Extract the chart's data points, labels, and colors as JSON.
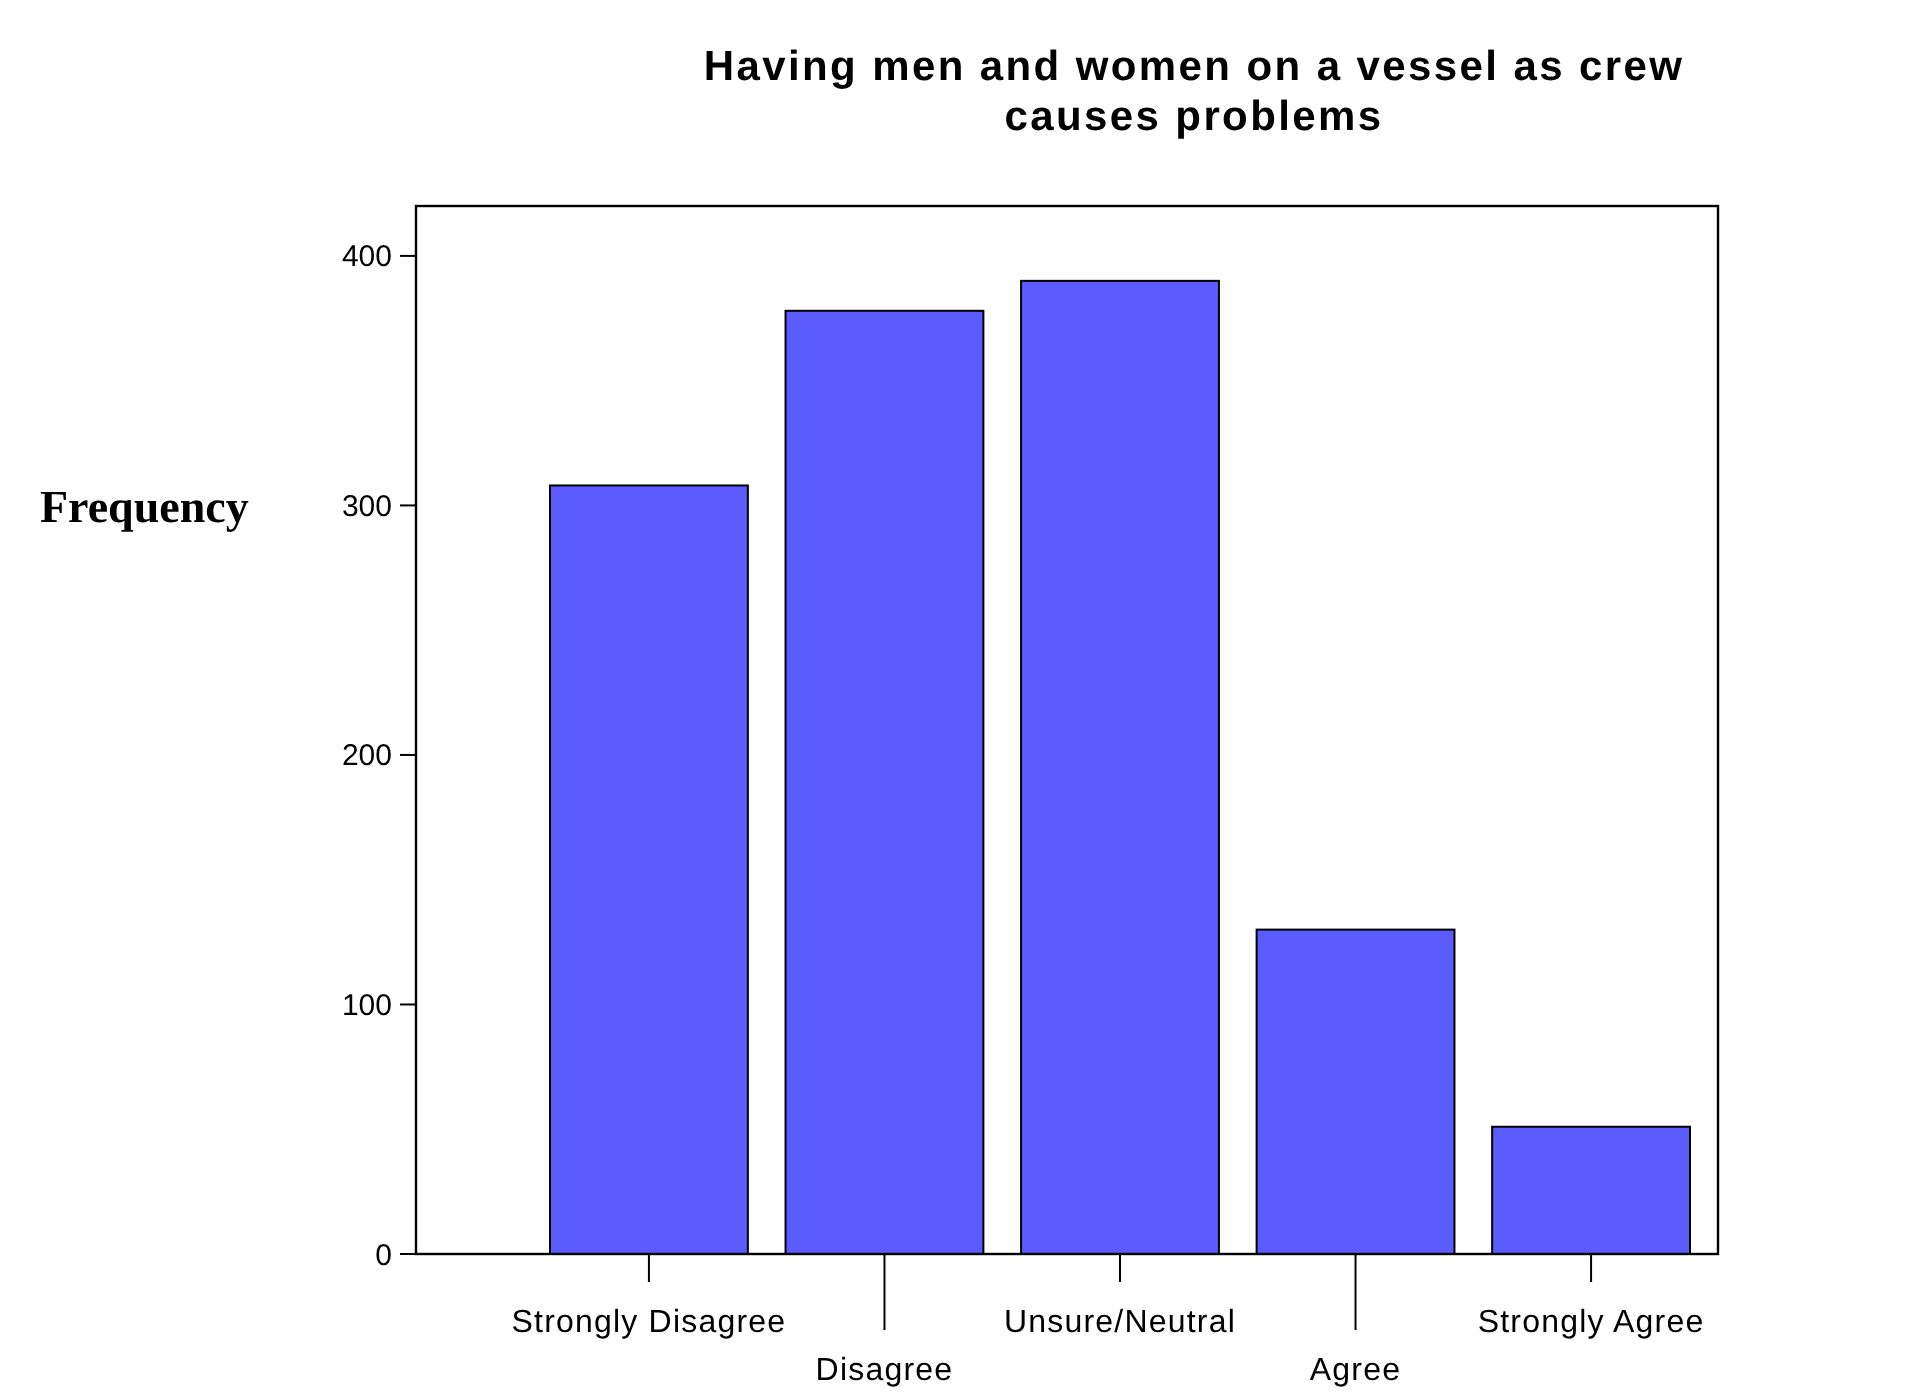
{
  "chart_data": {
    "type": "bar",
    "title": "Having men and women on a vessel as crew causes problems",
    "ylabel": "Frequency",
    "categories": [
      "Strongly Disagree",
      "Disagree",
      "Unsure/Neutral",
      "Agree",
      "Strongly Agree"
    ],
    "values": [
      308,
      378,
      390,
      130,
      51
    ],
    "color": "#5b5bff",
    "ylim": [
      0,
      420
    ],
    "yticks": [
      0,
      100,
      200,
      300,
      400
    ],
    "grid": false
  }
}
